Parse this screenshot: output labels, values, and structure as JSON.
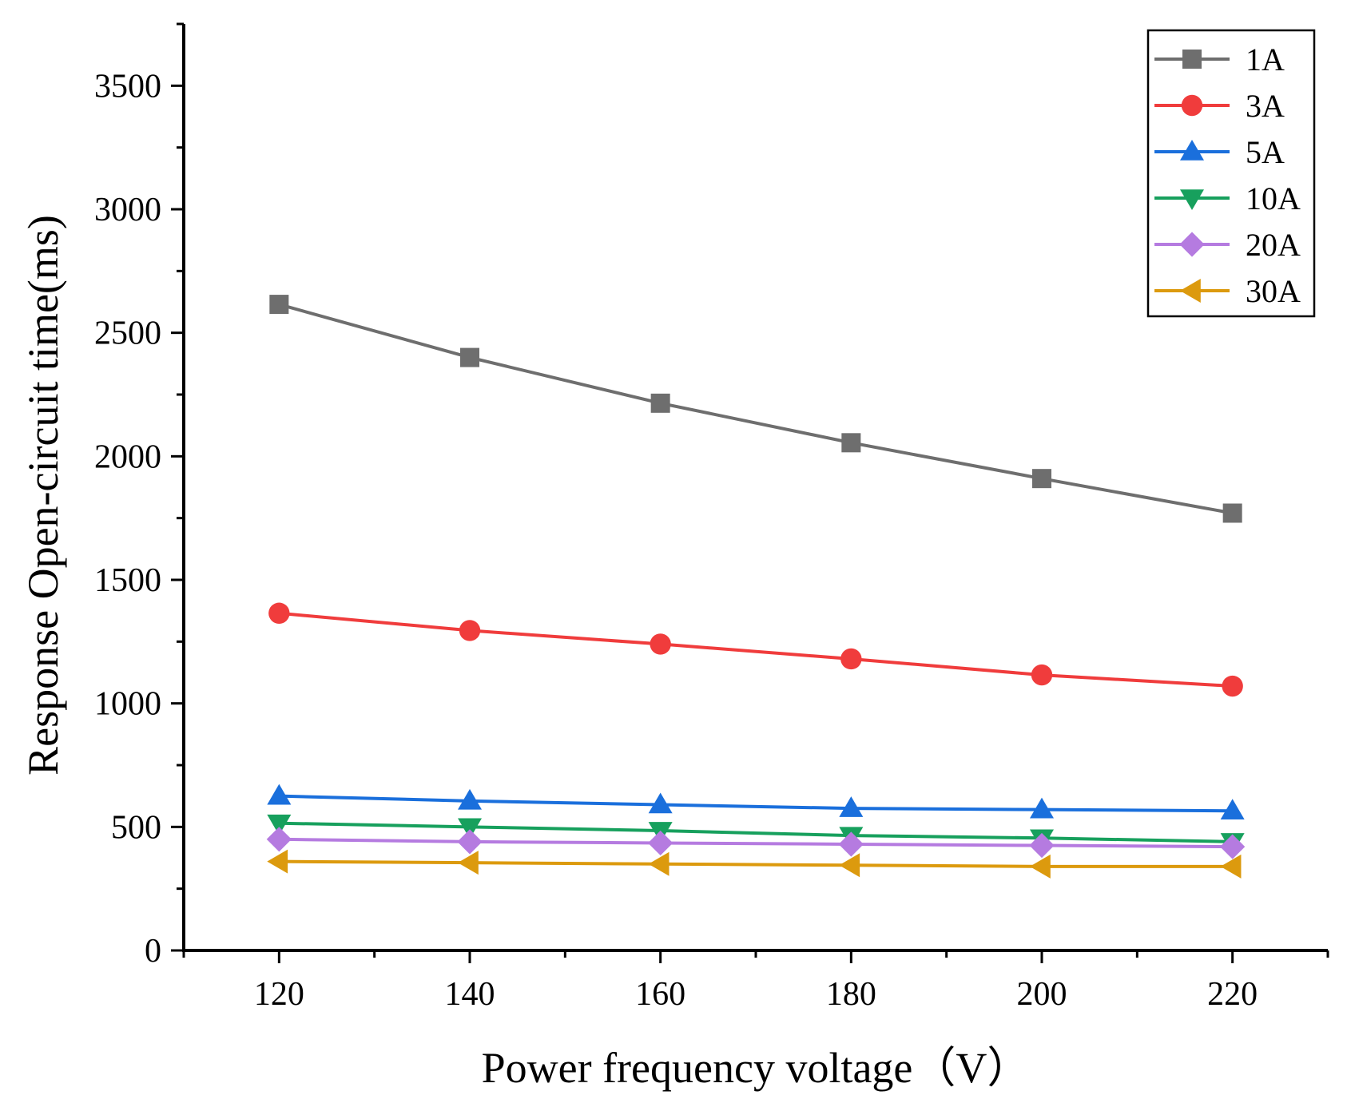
{
  "chart_data": {
    "type": "line",
    "xlabel": "Power frequency voltage（V）",
    "ylabel": "Response Open-circuit time(ms)",
    "x": [
      120,
      140,
      160,
      180,
      200,
      220
    ],
    "xlim": [
      110,
      230
    ],
    "ylim": [
      0,
      3750
    ],
    "xticks": [
      "120",
      "140",
      "160",
      "180",
      "200",
      "220"
    ],
    "yticks": [
      "0",
      "500",
      "1000",
      "1500",
      "2000",
      "2500",
      "3000",
      "3500"
    ],
    "grid": false,
    "legend_position": "top-right",
    "series": [
      {
        "name": "1A",
        "color": "#6e6e6e",
        "marker": "square",
        "values": [
          2615,
          2400,
          2215,
          2055,
          1910,
          1770
        ]
      },
      {
        "name": "3A",
        "color": "#f03c3c",
        "marker": "circle",
        "values": [
          1365,
          1295,
          1240,
          1180,
          1115,
          1070
        ]
      },
      {
        "name": "5A",
        "color": "#1a6fdc",
        "marker": "triangle-up",
        "values": [
          625,
          605,
          590,
          575,
          570,
          565
        ]
      },
      {
        "name": "10A",
        "color": "#17a05d",
        "marker": "triangle-down",
        "values": [
          515,
          500,
          485,
          465,
          455,
          440
        ]
      },
      {
        "name": "20A",
        "color": "#b57be0",
        "marker": "diamond",
        "values": [
          450,
          440,
          435,
          430,
          425,
          420
        ]
      },
      {
        "name": "30A",
        "color": "#dc9a0e",
        "marker": "triangle-left",
        "values": [
          360,
          355,
          350,
          345,
          340,
          340
        ]
      }
    ]
  }
}
